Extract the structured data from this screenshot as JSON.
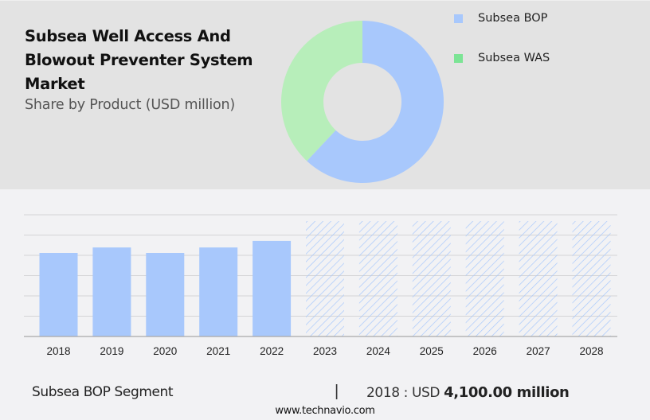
{
  "header": {
    "title": "Subsea Well Access And Blowout Preventer System Market",
    "subtitle": "Share by Product (USD million)"
  },
  "legend": [
    {
      "label": "Subsea BOP",
      "color": "#a8c8fc"
    },
    {
      "label": "Subsea WAS",
      "color": "#7ce495"
    }
  ],
  "footer": {
    "segment": "Subsea BOP Segment",
    "divider": "|",
    "value_prefix": "2018 : USD ",
    "value_bold": "4,100.00 million",
    "url": "www.technavio.com"
  },
  "colors": {
    "bop": "#a8c8fc",
    "was_donut": "#b7eeba",
    "was_legend": "#7ce495",
    "forecast_hatch": "#a8c8fc",
    "gridline": "#d4d4d6",
    "axis": "#a9a9a9"
  },
  "chart_data": [
    {
      "type": "pie",
      "title": "Subsea Well Access And Blowout Preventer System Market",
      "subtitle": "Share by Product (USD million)",
      "donut": true,
      "categories": [
        "Subsea BOP",
        "Subsea WAS"
      ],
      "values": [
        62,
        38
      ],
      "unit": "% share (estimated)",
      "legend_position": "right"
    },
    {
      "type": "bar",
      "title": "Subsea BOP Segment",
      "categories": [
        "2018",
        "2019",
        "2020",
        "2021",
        "2022",
        "2023",
        "2024",
        "2025",
        "2026",
        "2027",
        "2028"
      ],
      "values": [
        4100,
        4370,
        4100,
        4370,
        4690,
        null,
        null,
        null,
        null,
        null,
        null
      ],
      "forecast_years": [
        "2023",
        "2024",
        "2025",
        "2026",
        "2027",
        "2028"
      ],
      "forecast_style": "hatched, full height (values not disclosed)",
      "ylabel": "USD million",
      "xlabel": "",
      "ylim": [
        0,
        6000
      ],
      "grid": true,
      "annotation": "2018 : USD 4,100.00 million"
    }
  ]
}
